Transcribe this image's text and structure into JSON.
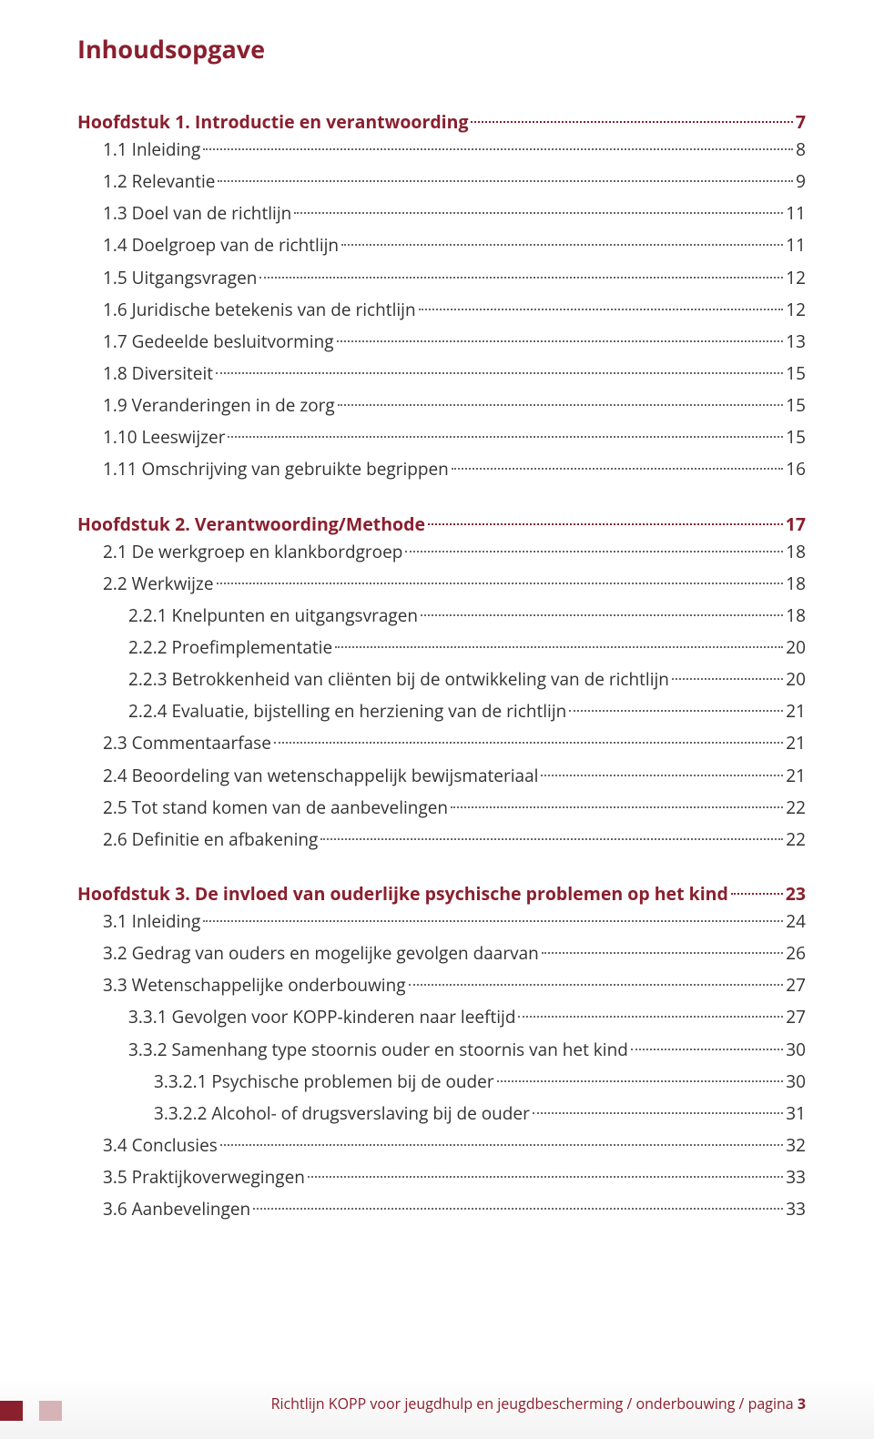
{
  "colors": {
    "accent": "#8a1f2e",
    "text": "#333333",
    "footer_bg": "#f3f3f3",
    "dot": "#666666",
    "sq1": "#8a1f2e",
    "sq2": "#d5b3b7"
  },
  "title": "Inhoudsopgave",
  "chapters": [
    {
      "heading": {
        "label": "Hoofdstuk 1. Introductie en verantwoording",
        "page": "7"
      },
      "entries": [
        {
          "level": 1,
          "label": "1.1 Inleiding",
          "page": "8"
        },
        {
          "level": 1,
          "label": "1.2 Relevantie",
          "page": "9"
        },
        {
          "level": 1,
          "label": "1.3 Doel van de richtlijn",
          "page": "11"
        },
        {
          "level": 1,
          "label": "1.4 Doelgroep van de richtlijn",
          "page": "11"
        },
        {
          "level": 1,
          "label": "1.5 Uitgangsvragen",
          "page": "12"
        },
        {
          "level": 1,
          "label": "1.6 Juridische betekenis van de richtlijn",
          "page": "12"
        },
        {
          "level": 1,
          "label": "1.7 Gedeelde besluitvorming",
          "page": "13"
        },
        {
          "level": 1,
          "label": "1.8 Diversiteit",
          "page": "15"
        },
        {
          "level": 1,
          "label": "1.9 Veranderingen in de zorg",
          "page": "15"
        },
        {
          "level": 1,
          "label": "1.10 Leeswijzer",
          "page": "15"
        },
        {
          "level": 1,
          "label": "1.11 Omschrijving van gebruikte begrippen",
          "page": "16"
        }
      ]
    },
    {
      "heading": {
        "label": "Hoofdstuk 2. Verantwoording/Methode",
        "page": "17"
      },
      "entries": [
        {
          "level": 1,
          "label": "2.1 De werkgroep en klankbordgroep",
          "page": "18"
        },
        {
          "level": 1,
          "label": "2.2 Werkwijze",
          "page": "18"
        },
        {
          "level": 2,
          "label": "2.2.1 Knelpunten en uitgangsvragen",
          "page": "18"
        },
        {
          "level": 2,
          "label": "2.2.2 Proefimplementatie",
          "page": "20"
        },
        {
          "level": 2,
          "label": "2.2.3 Betrokkenheid van cliënten bij de ontwikkeling van de richtlijn",
          "page": "20"
        },
        {
          "level": 2,
          "label": "2.2.4 Evaluatie, bijstelling en herziening van de richtlijn",
          "page": "21"
        },
        {
          "level": 1,
          "label": "2.3 Commentaarfase",
          "page": "21"
        },
        {
          "level": 1,
          "label": "2.4 Beoordeling van wetenschappelijk bewijsmateriaal",
          "page": "21"
        },
        {
          "level": 1,
          "label": "2.5 Tot stand komen van de aanbevelingen",
          "page": "22"
        },
        {
          "level": 1,
          "label": "2.6 Definitie en afbakening",
          "page": "22"
        }
      ]
    },
    {
      "heading": {
        "label": "Hoofdstuk 3. De invloed van ouderlijke psychische problemen op het kind",
        "page": "23"
      },
      "entries": [
        {
          "level": 1,
          "label": "3.1 Inleiding",
          "page": "24"
        },
        {
          "level": 1,
          "label": "3.2 Gedrag van ouders en mogelijke gevolgen daarvan",
          "page": "26"
        },
        {
          "level": 1,
          "label": "3.3 Wetenschappelijke onderbouwing",
          "page": "27"
        },
        {
          "level": 2,
          "label": "3.3.1 Gevolgen voor KOPP-kinderen naar leeftijd",
          "page": "27"
        },
        {
          "level": 2,
          "label": "3.3.2 Samenhang type stoornis ouder en stoornis van het kind",
          "page": "30"
        },
        {
          "level": 3,
          "label": "3.3.2.1 Psychische problemen bij de ouder",
          "page": "30"
        },
        {
          "level": 3,
          "label": "3.3.2.2 Alcohol- of drugsverslaving bij de ouder",
          "page": "31"
        },
        {
          "level": 1,
          "label": "3.4 Conclusies",
          "page": "32"
        },
        {
          "level": 1,
          "label": "3.5 Praktijkoverwegingen",
          "page": "33"
        },
        {
          "level": 1,
          "label": "3.6 Aanbevelingen",
          "page": "33"
        }
      ]
    }
  ],
  "footer": {
    "text": "Richtlijn KOPP voor jeugdhulp en jeugdbescherming / onderbouwing / pagina",
    "page_no": "3",
    "squares": [
      {
        "color": "#8a1f2e",
        "width": 25
      },
      {
        "color": "#d5b3b7",
        "width": 25
      }
    ]
  }
}
